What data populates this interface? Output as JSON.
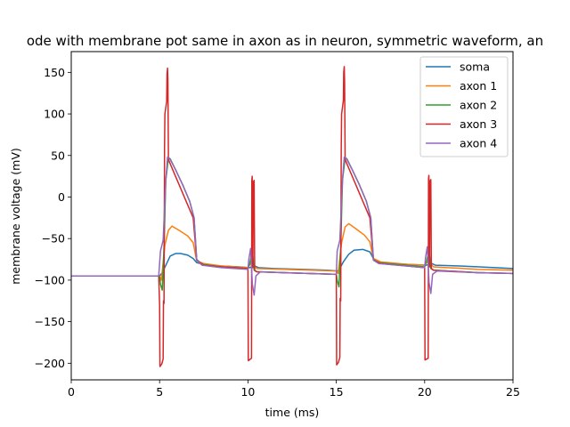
{
  "chart_data": {
    "type": "line",
    "title": "ode with membrane pot same in axon as in neuron, symmetric waveform, an",
    "xlabel": "time (ms)",
    "ylabel": "membrane voltage (mV)",
    "xlim": [
      0,
      25
    ],
    "ylim": [
      -220,
      175
    ],
    "xticks": [
      0,
      5,
      10,
      15,
      20,
      25
    ],
    "yticks": [
      -200,
      -150,
      -100,
      -50,
      0,
      50,
      100,
      150
    ],
    "legend_position": "upper-right",
    "grid": false,
    "series": [
      {
        "name": "soma",
        "color": "#1f77b4",
        "points": [
          [
            0,
            -95
          ],
          [
            5,
            -95
          ],
          [
            5.15,
            -91
          ],
          [
            5.4,
            -80
          ],
          [
            5.6,
            -71
          ],
          [
            5.9,
            -68
          ],
          [
            6.2,
            -68
          ],
          [
            6.6,
            -70
          ],
          [
            6.9,
            -74
          ],
          [
            7.1,
            -79
          ],
          [
            7.5,
            -81
          ],
          [
            8.5,
            -83
          ],
          [
            9.5,
            -84
          ],
          [
            10.1,
            -85
          ],
          [
            10.25,
            -84
          ],
          [
            10.4,
            -83
          ],
          [
            10.6,
            -85
          ],
          [
            11.5,
            -86
          ],
          [
            13,
            -87
          ],
          [
            14.5,
            -88
          ],
          [
            15.1,
            -89
          ],
          [
            15.2,
            -86
          ],
          [
            15.4,
            -78
          ],
          [
            15.7,
            -69
          ],
          [
            16,
            -64
          ],
          [
            16.5,
            -63
          ],
          [
            16.9,
            -66
          ],
          [
            17.1,
            -74
          ],
          [
            17.3,
            -78
          ],
          [
            18,
            -80
          ],
          [
            19,
            -81
          ],
          [
            20.1,
            -82
          ],
          [
            20.25,
            -81
          ],
          [
            20.4,
            -80
          ],
          [
            20.6,
            -82
          ],
          [
            22,
            -83
          ],
          [
            24,
            -85
          ],
          [
            25,
            -86
          ]
        ]
      },
      {
        "name": "axon 1",
        "color": "#ff7f0e",
        "points": [
          [
            0,
            -95
          ],
          [
            5,
            -95
          ],
          [
            5.1,
            -100
          ],
          [
            5.3,
            -58
          ],
          [
            5.5,
            -40
          ],
          [
            5.7,
            -35
          ],
          [
            6.1,
            -40
          ],
          [
            6.6,
            -47
          ],
          [
            6.9,
            -55
          ],
          [
            7.1,
            -77
          ],
          [
            7.5,
            -80
          ],
          [
            8.5,
            -83
          ],
          [
            10,
            -85
          ],
          [
            10.15,
            -80
          ],
          [
            10.3,
            -82
          ],
          [
            10.5,
            -86
          ],
          [
            12,
            -87
          ],
          [
            15,
            -89
          ],
          [
            15.1,
            -92
          ],
          [
            15.3,
            -55
          ],
          [
            15.5,
            -36
          ],
          [
            15.7,
            -32
          ],
          [
            16.1,
            -38
          ],
          [
            16.6,
            -46
          ],
          [
            16.9,
            -54
          ],
          [
            17.1,
            -74
          ],
          [
            17.5,
            -78
          ],
          [
            19,
            -81
          ],
          [
            20,
            -82
          ],
          [
            20.15,
            -78
          ],
          [
            20.3,
            -80
          ],
          [
            20.5,
            -84
          ],
          [
            23,
            -87
          ],
          [
            25,
            -88
          ]
        ]
      },
      {
        "name": "axon 2",
        "color": "#2ca02c",
        "points": [
          [
            0,
            -95
          ],
          [
            5,
            -95
          ],
          [
            5.05,
            -105
          ],
          [
            5.15,
            -112
          ],
          [
            5.25,
            -60
          ],
          [
            5.35,
            20
          ],
          [
            5.5,
            47
          ],
          [
            5.6,
            46
          ],
          [
            5.9,
            33
          ],
          [
            6.3,
            15
          ],
          [
            6.7,
            -5
          ],
          [
            6.95,
            -25
          ],
          [
            7.1,
            -75
          ],
          [
            7.4,
            -81
          ],
          [
            8.5,
            -84
          ],
          [
            10,
            -86
          ],
          [
            10.1,
            -80
          ],
          [
            10.25,
            -65
          ],
          [
            10.35,
            -88
          ],
          [
            10.5,
            -90
          ],
          [
            12,
            -91
          ],
          [
            15,
            -93
          ],
          [
            15.05,
            -100
          ],
          [
            15.15,
            -108
          ],
          [
            15.25,
            -60
          ],
          [
            15.35,
            20
          ],
          [
            15.5,
            47
          ],
          [
            15.6,
            46
          ],
          [
            15.9,
            33
          ],
          [
            16.3,
            15
          ],
          [
            16.7,
            -5
          ],
          [
            16.95,
            -25
          ],
          [
            17.1,
            -75
          ],
          [
            17.4,
            -79
          ],
          [
            19,
            -82
          ],
          [
            20,
            -84
          ],
          [
            20.1,
            -78
          ],
          [
            20.25,
            -64
          ],
          [
            20.35,
            -86
          ],
          [
            20.5,
            -88
          ],
          [
            23,
            -91
          ],
          [
            25,
            -92
          ]
        ]
      },
      {
        "name": "axon 3",
        "color": "#d62728",
        "points": [
          [
            0,
            -95
          ],
          [
            4.95,
            -95
          ],
          [
            5,
            -130
          ],
          [
            5.02,
            -204
          ],
          [
            5.12,
            -201
          ],
          [
            5.2,
            -195
          ],
          [
            5.22,
            -125
          ],
          [
            5.25,
            -128
          ],
          [
            5.28,
            60
          ],
          [
            5.3,
            100
          ],
          [
            5.4,
            115
          ],
          [
            5.42,
            148
          ],
          [
            5.45,
            155
          ],
          [
            5.47,
            140
          ],
          [
            5.5,
            45
          ],
          [
            5.7,
            35
          ],
          [
            6.1,
            15
          ],
          [
            6.5,
            -5
          ],
          [
            6.9,
            -25
          ],
          [
            7.1,
            -76
          ],
          [
            7.5,
            -82
          ],
          [
            8.5,
            -84
          ],
          [
            10,
            -86
          ],
          [
            10.02,
            -197
          ],
          [
            10.2,
            -194
          ],
          [
            10.22,
            20
          ],
          [
            10.24,
            25
          ],
          [
            10.28,
            -85
          ],
          [
            10.3,
            18
          ],
          [
            10.35,
            20
          ],
          [
            10.38,
            -88
          ],
          [
            10.5,
            -90
          ],
          [
            12,
            -91
          ],
          [
            15,
            -93
          ],
          [
            15.02,
            -202
          ],
          [
            15.12,
            -199
          ],
          [
            15.2,
            -193
          ],
          [
            15.22,
            -122
          ],
          [
            15.25,
            -125
          ],
          [
            15.28,
            60
          ],
          [
            15.3,
            100
          ],
          [
            15.4,
            116
          ],
          [
            15.42,
            150
          ],
          [
            15.45,
            157
          ],
          [
            15.47,
            140
          ],
          [
            15.5,
            45
          ],
          [
            15.7,
            35
          ],
          [
            16.1,
            15
          ],
          [
            16.5,
            -5
          ],
          [
            16.9,
            -25
          ],
          [
            17.1,
            -76
          ],
          [
            17.5,
            -80
          ],
          [
            19,
            -83
          ],
          [
            20,
            -85
          ],
          [
            20.02,
            -196
          ],
          [
            20.2,
            -194
          ],
          [
            20.22,
            22
          ],
          [
            20.24,
            26
          ],
          [
            20.28,
            -84
          ],
          [
            20.3,
            19
          ],
          [
            20.35,
            21
          ],
          [
            20.38,
            -86
          ],
          [
            20.5,
            -88
          ],
          [
            23,
            -91
          ],
          [
            25,
            -92
          ]
        ]
      },
      {
        "name": "axon 4",
        "color": "#9467bd",
        "points": [
          [
            0,
            -95
          ],
          [
            4.95,
            -95
          ],
          [
            5.05,
            -65
          ],
          [
            5.2,
            -52
          ],
          [
            5.35,
            20
          ],
          [
            5.45,
            48
          ],
          [
            5.55,
            47
          ],
          [
            5.9,
            33
          ],
          [
            6.3,
            15
          ],
          [
            6.7,
            -5
          ],
          [
            6.95,
            -25
          ],
          [
            7.1,
            -76
          ],
          [
            7.4,
            -82
          ],
          [
            8.5,
            -85
          ],
          [
            10,
            -87
          ],
          [
            10.05,
            -75
          ],
          [
            10.15,
            -62
          ],
          [
            10.25,
            -105
          ],
          [
            10.35,
            -118
          ],
          [
            10.45,
            -95
          ],
          [
            10.7,
            -90
          ],
          [
            12,
            -91
          ],
          [
            15,
            -93
          ],
          [
            15.05,
            -65
          ],
          [
            15.2,
            -52
          ],
          [
            15.35,
            20
          ],
          [
            15.45,
            48
          ],
          [
            15.55,
            47
          ],
          [
            15.9,
            33
          ],
          [
            16.3,
            15
          ],
          [
            16.7,
            -5
          ],
          [
            16.95,
            -25
          ],
          [
            17.1,
            -76
          ],
          [
            17.4,
            -80
          ],
          [
            19,
            -83
          ],
          [
            20,
            -85
          ],
          [
            20.05,
            -73
          ],
          [
            20.15,
            -60
          ],
          [
            20.25,
            -103
          ],
          [
            20.35,
            -116
          ],
          [
            20.45,
            -93
          ],
          [
            20.7,
            -89
          ],
          [
            23,
            -91
          ],
          [
            25,
            -92
          ]
        ]
      }
    ]
  }
}
